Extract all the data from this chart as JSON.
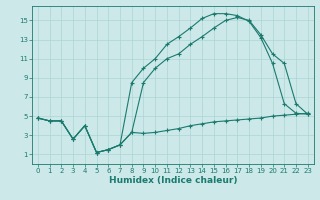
{
  "title": "",
  "xlabel": "Humidex (Indice chaleur)",
  "bg_color": "#cce8e8",
  "line_color": "#1a7a6e",
  "grid_color": "#aad4d4",
  "xlim": [
    -0.5,
    23.5
  ],
  "ylim": [
    0,
    16.5
  ],
  "xticks": [
    0,
    1,
    2,
    3,
    4,
    5,
    6,
    7,
    8,
    9,
    10,
    11,
    12,
    13,
    14,
    15,
    16,
    17,
    18,
    19,
    20,
    21,
    22,
    23
  ],
  "yticks": [
    1,
    3,
    5,
    7,
    9,
    11,
    13,
    15
  ],
  "line1_x": [
    0,
    1,
    2,
    3,
    4,
    5,
    6,
    7,
    8,
    9,
    10,
    11,
    12,
    13,
    14,
    15,
    16,
    17,
    18,
    19,
    20,
    21,
    22,
    23
  ],
  "line1_y": [
    4.8,
    4.5,
    4.5,
    2.6,
    4.0,
    1.2,
    1.5,
    2.0,
    3.3,
    3.2,
    3.3,
    3.5,
    3.7,
    4.0,
    4.2,
    4.4,
    4.5,
    4.6,
    4.7,
    4.8,
    5.0,
    5.1,
    5.2,
    5.3
  ],
  "line2_x": [
    0,
    1,
    2,
    3,
    4,
    5,
    6,
    7,
    8,
    9,
    10,
    11,
    12,
    13,
    14,
    15,
    16,
    17,
    18,
    19,
    20,
    21,
    22,
    23
  ],
  "line2_y": [
    4.8,
    4.5,
    4.5,
    2.6,
    4.0,
    1.2,
    1.5,
    2.0,
    8.5,
    10.0,
    11.0,
    12.5,
    13.3,
    14.2,
    15.2,
    15.7,
    15.7,
    15.5,
    14.9,
    13.2,
    10.5,
    6.3,
    5.3,
    5.2
  ],
  "line3_x": [
    0,
    1,
    2,
    3,
    4,
    5,
    6,
    7,
    8,
    9,
    10,
    11,
    12,
    13,
    14,
    15,
    16,
    17,
    18,
    19,
    20,
    21,
    22,
    23
  ],
  "line3_y": [
    4.8,
    4.5,
    4.5,
    2.6,
    4.0,
    1.2,
    1.5,
    2.0,
    3.3,
    8.5,
    10.0,
    11.0,
    11.5,
    12.5,
    13.3,
    14.2,
    15.0,
    15.3,
    15.0,
    13.5,
    11.5,
    10.5,
    6.3,
    5.2
  ],
  "tick_fontsize": 5.0,
  "xlabel_fontsize": 6.5,
  "xlabel_fontweight": "bold"
}
